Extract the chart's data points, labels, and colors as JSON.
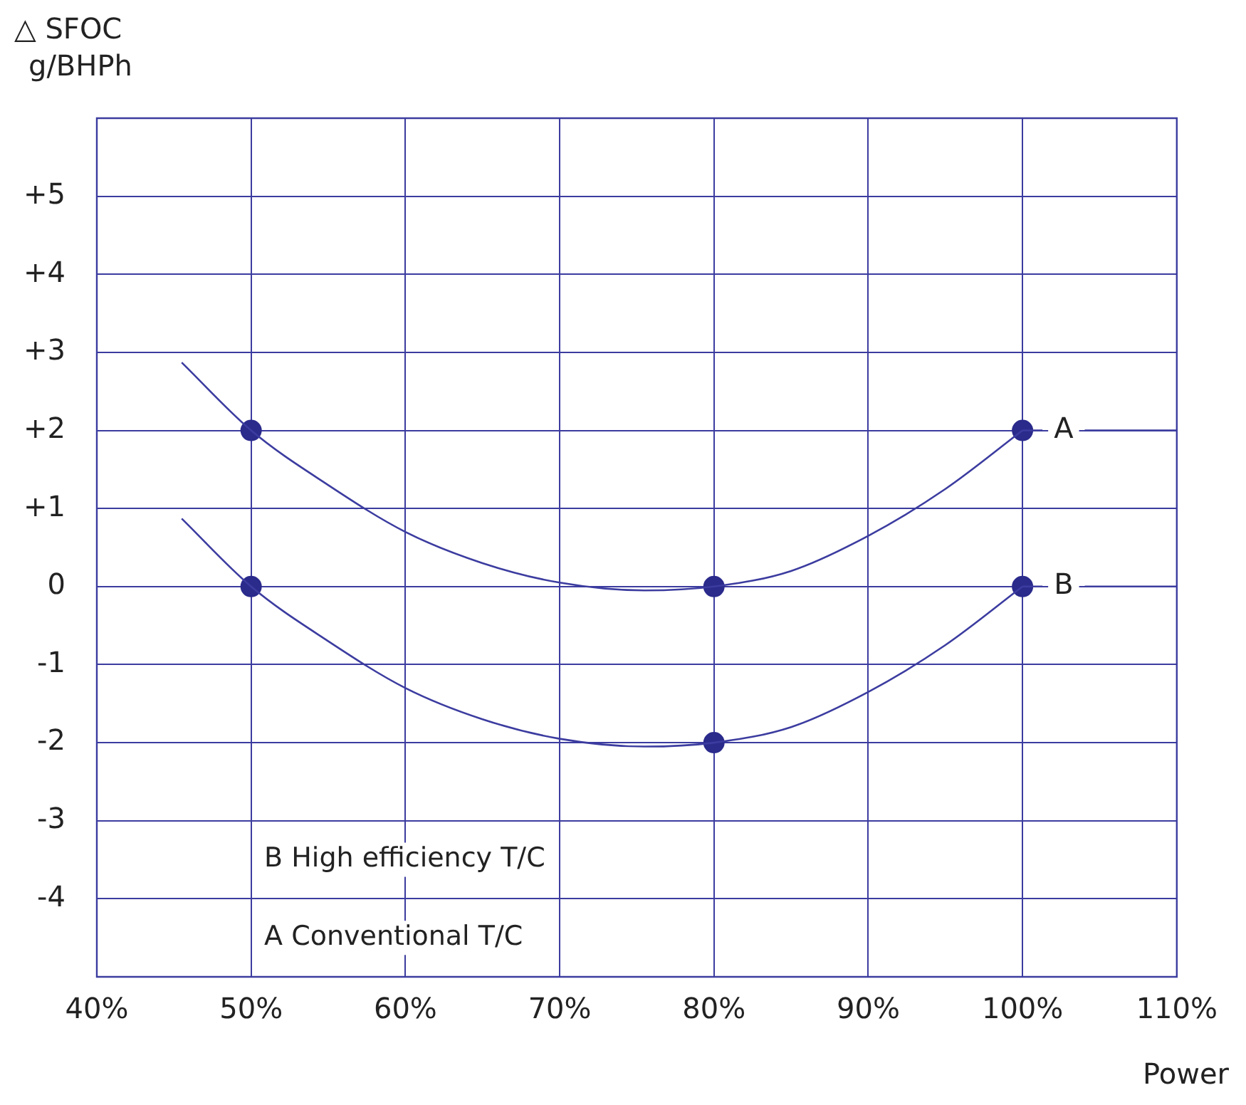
{
  "chart_data": {
    "type": "line",
    "xlabel": "Power",
    "ylabel": "△ SFOC\ng/BHPh",
    "xlim": [
      40,
      110
    ],
    "xticks": [
      {
        "value": 40,
        "label": "40%"
      },
      {
        "value": 50,
        "label": "50%"
      },
      {
        "value": 60,
        "label": "60%"
      },
      {
        "value": 70,
        "label": "70%"
      },
      {
        "value": 80,
        "label": "80%"
      },
      {
        "value": 90,
        "label": "90%"
      },
      {
        "value": 100,
        "label": "100%"
      },
      {
        "value": 110,
        "label": "110%"
      }
    ],
    "ylim": [
      -5,
      6
    ],
    "yticks": [
      -4,
      -3,
      -2,
      -1,
      0,
      {
        "value": 1,
        "label": "+1"
      },
      {
        "value": 2,
        "label": "+2"
      },
      {
        "value": 3,
        "label": "+3"
      },
      {
        "value": 4,
        "label": "+4"
      },
      {
        "value": 5,
        "label": "+5"
      }
    ],
    "grid": true,
    "legend": "right",
    "marker": "none",
    "line_style": "solid",
    "annotations": [
      "B High efficiency T/C",
      "A Conventional T/C"
    ],
    "series": [
      {
        "name": "A",
        "type": "line",
        "color": "#3c3ca0",
        "x": [
          45.5,
          50,
          55,
          60,
          65,
          70,
          75.5,
          80,
          85,
          90,
          95,
          100
        ],
        "values": [
          2.87,
          2,
          1.3,
          0.7,
          0.3,
          0.05,
          -0.05,
          0,
          0.2,
          0.65,
          1.25,
          2
        ]
      },
      {
        "name": "B",
        "type": "line",
        "color": "#3c3ca0",
        "x": [
          45.5,
          50,
          55,
          60,
          65,
          70,
          75.5,
          80,
          85,
          90,
          95,
          100
        ],
        "values": [
          0.87,
          0,
          -0.7,
          -1.3,
          -1.7,
          -1.95,
          -2.05,
          -2,
          -1.8,
          -1.35,
          -0.75,
          0
        ]
      },
      {
        "type": "scatter",
        "marker": "circle",
        "color": "#2b2b8c",
        "x": [
          50,
          80,
          100
        ],
        "values": [
          2,
          0,
          2
        ]
      },
      {
        "type": "scatter",
        "marker": "circle",
        "color": "#2b2b8c",
        "x": [
          50,
          80,
          100
        ],
        "values": [
          0,
          -2,
          0
        ]
      }
    ]
  }
}
